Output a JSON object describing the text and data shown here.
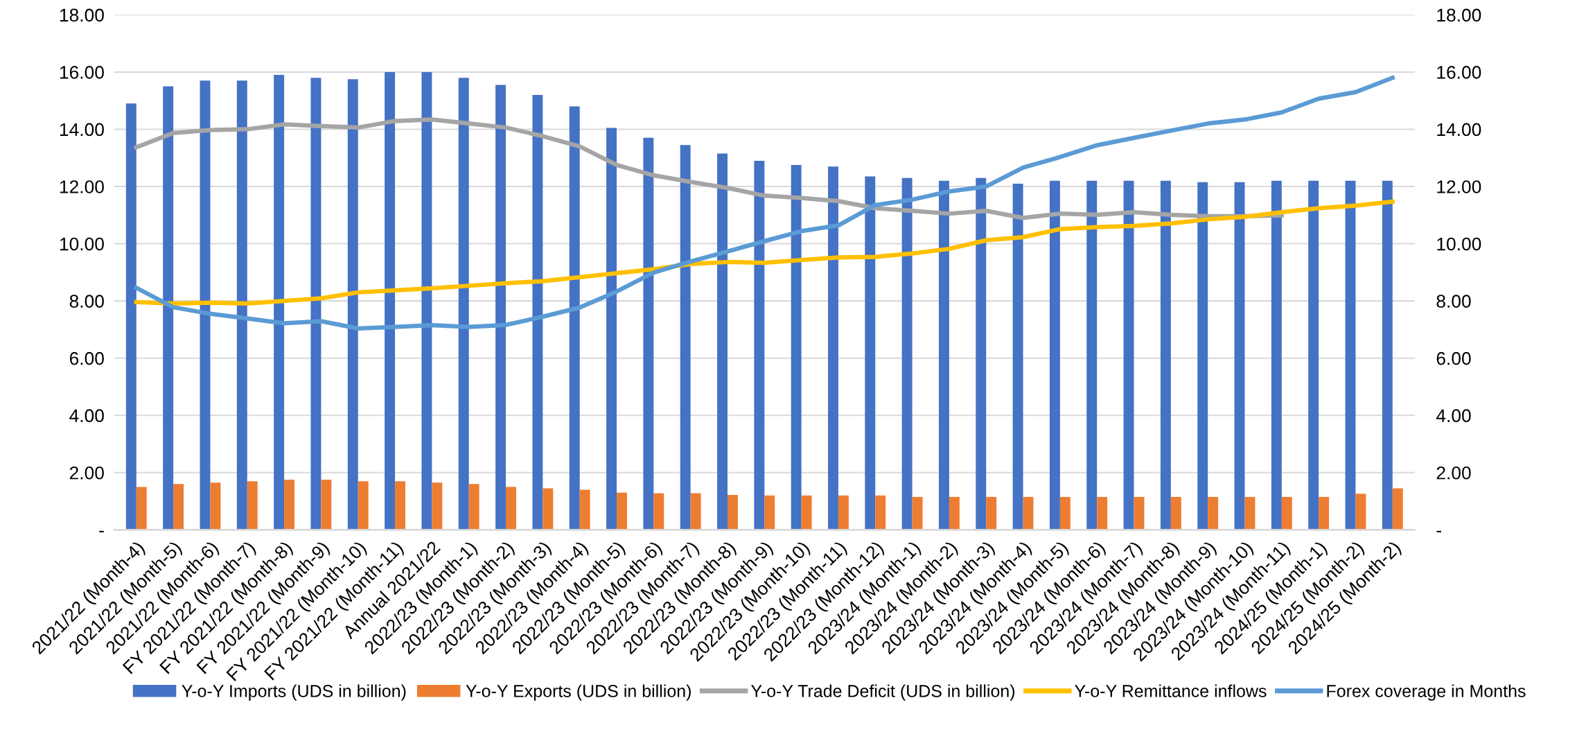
{
  "chart_data": {
    "type": "bar",
    "categories": [
      "2021/22 (Month-4)",
      "2021/22 (Month-5)",
      "2021/22 (Month-6)",
      "FY 2021/22 (Month-7)",
      "FY 2021/22 (Month-8)",
      "FY 2021/22 (Month-9)",
      "FY 2021/22 (Month-10)",
      "FY 2021/22 (Month-11)",
      "Annual 2021/22",
      "2022/23 (Month-1)",
      "2022/23 (Month-2)",
      "2022/23 (Month-3)",
      "2022/23 (Month-4)",
      "2022/23 (Month-5)",
      "2022/23 (Month-6)",
      "2022/23 (Month-7)",
      "2022/23 (Month-8)",
      "2022/23 (Month-9)",
      "2022/23 (Month-10)",
      "2022/23 (Month-11)",
      "2022/23 (Month-12)",
      "2023/24 (Month-1)",
      "2023/24 (Month-2)",
      "2023/24 (Month-3)",
      "2023/24 (Month-4)",
      "2023/24 (Month-5)",
      "2023/24 (Month-6)",
      "2023/24 (Month-7)",
      "2023/24 (Month-8)",
      "2023/24 (Month-9)",
      "2023/24 (Month-10)",
      "2023/24 (Month-11)",
      "2024/25 (Month-1)",
      "2024/25 (Month-2)",
      "2024/25 (Month-2)"
    ],
    "series": [
      {
        "name": "Y-o-Y Imports (UDS in billion)",
        "color": "#4472c4",
        "values": [
          14.9,
          15.5,
          15.7,
          15.7,
          15.9,
          15.8,
          15.75,
          16.0,
          16.0,
          15.8,
          15.55,
          15.2,
          14.8,
          14.05,
          13.7,
          13.45,
          13.15,
          12.9,
          12.75,
          12.7,
          12.35,
          12.3,
          12.2,
          12.3,
          12.1,
          12.2,
          12.2,
          12.2,
          12.2,
          12.15,
          12.15,
          12.2,
          12.2,
          12.2,
          12.2
        ]
      },
      {
        "name": "Y-o-Y Exports (UDS in billion)",
        "color": "#ed7d31",
        "values": [
          1.5,
          1.6,
          1.65,
          1.7,
          1.75,
          1.75,
          1.7,
          1.7,
          1.65,
          1.6,
          1.5,
          1.45,
          1.4,
          1.3,
          1.28,
          1.28,
          1.22,
          1.2,
          1.2,
          1.2,
          1.2,
          1.15,
          1.15,
          1.15,
          1.15,
          1.15,
          1.15,
          1.15,
          1.15,
          1.15,
          1.15,
          1.15,
          1.15,
          1.26,
          1.45
        ]
      },
      {
        "name": "Y-o-Y Trade Deficit (UDS in billion)",
        "type": "line",
        "color": "#a5a5a5",
        "values": [
          13.37,
          13.87,
          13.97,
          14.0,
          14.17,
          14.11,
          14.06,
          14.29,
          14.34,
          14.2,
          14.06,
          13.76,
          13.4,
          12.75,
          12.39,
          12.16,
          11.95,
          11.68,
          11.6,
          11.49,
          11.24,
          11.15,
          11.05,
          11.15,
          10.9,
          11.05,
          11.01,
          11.1,
          11.01,
          10.96,
          10.96,
          10.99,
          null,
          null,
          null
        ]
      },
      {
        "name": "Y-o-Y Remittance inflows",
        "type": "line",
        "color": "#ffc000",
        "values": [
          7.96,
          7.91,
          7.94,
          7.91,
          8.0,
          8.09,
          8.3,
          8.37,
          8.44,
          8.53,
          8.62,
          8.69,
          8.83,
          8.97,
          9.11,
          9.29,
          9.36,
          9.33,
          9.43,
          9.52,
          9.54,
          9.66,
          9.82,
          10.12,
          10.23,
          10.51,
          10.58,
          10.62,
          10.71,
          10.85,
          10.94,
          11.1,
          11.24,
          11.33,
          11.47
        ]
      },
      {
        "name": "Forex coverage in Months",
        "type": "line",
        "color": "#5b9bd5",
        "values": [
          8.46,
          7.78,
          7.55,
          7.39,
          7.22,
          7.29,
          7.04,
          7.09,
          7.15,
          7.09,
          7.16,
          7.45,
          7.77,
          8.33,
          8.99,
          9.38,
          9.73,
          10.09,
          10.44,
          10.64,
          11.35,
          11.54,
          11.83,
          12.0,
          12.66,
          13.03,
          13.44,
          13.7,
          13.95,
          14.2,
          14.34,
          14.59,
          15.07,
          15.3,
          15.8
        ]
      }
    ],
    "ylim": [
      0,
      18
    ],
    "yticks": [
      {
        "value": 0,
        "label": "-"
      },
      {
        "value": 2,
        "label": "2.00"
      },
      {
        "value": 4,
        "label": "4.00"
      },
      {
        "value": 6,
        "label": "6.00"
      },
      {
        "value": 8,
        "label": "8.00"
      },
      {
        "value": 10,
        "label": "10.00"
      },
      {
        "value": 12,
        "label": "12.00"
      },
      {
        "value": 14,
        "label": "14.00"
      },
      {
        "value": 16,
        "label": "16.00"
      },
      {
        "value": 18,
        "label": "18.00"
      }
    ],
    "y2lim": [
      0,
      18
    ],
    "y2ticks": [
      {
        "value": 0,
        "label": "-"
      },
      {
        "value": 2,
        "label": "2.00"
      },
      {
        "value": 4,
        "label": "4.00"
      },
      {
        "value": 6,
        "label": "6.00"
      },
      {
        "value": 8,
        "label": "8.00"
      },
      {
        "value": 10,
        "label": "10.00"
      },
      {
        "value": 12,
        "label": "12.00"
      },
      {
        "value": 14,
        "label": "14.00"
      },
      {
        "value": 16,
        "label": "16.00"
      },
      {
        "value": 18,
        "label": "18.00"
      }
    ],
    "grid": "y",
    "legend": "bottom",
    "line_style": "solid",
    "marker": "none"
  }
}
